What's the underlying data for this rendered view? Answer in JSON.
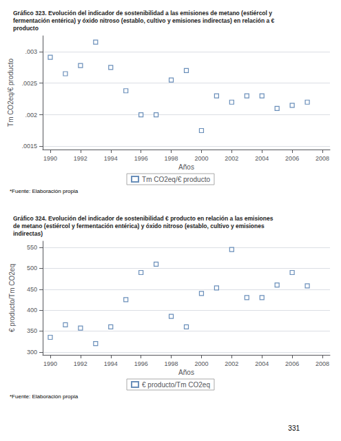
{
  "chart_data": [
    {
      "type": "scatter",
      "title": "Gráfico 323. Evolución del indicador de sostenibilidad a las emisiones de metano (estiércol y\nfermentación entérica) y óxido nitroso (establo, cultivo y emisiones indirectas) en relación a €\nproducto",
      "x": [
        1990,
        1991,
        1992,
        1993,
        1994,
        1995,
        1996,
        1997,
        1998,
        1999,
        2000,
        2001,
        2002,
        2003,
        2004,
        2005,
        2006,
        2007
      ],
      "series": [
        {
          "name": "Tm CO2eq/€ producto",
          "color": "#4472a8",
          "marker": "square",
          "values": [
            0.00291,
            0.00265,
            0.00278,
            0.00315,
            0.00275,
            0.00238,
            0.002,
            0.002,
            0.00255,
            0.0027,
            0.00175,
            0.0023,
            0.0022,
            0.0023,
            0.0023,
            0.0021,
            0.00215,
            0.0022
          ]
        }
      ],
      "xlabel": "Años",
      "ylabel": "Tm CO2eq/€ producto",
      "xlim": [
        1989.5,
        2008.5
      ],
      "ylim": [
        0.00145,
        0.00325
      ],
      "xticks": [
        1990,
        1992,
        1994,
        1996,
        1998,
        2000,
        2002,
        2004,
        2006,
        2008
      ],
      "yticks": [
        {
          "value": 0.0015,
          "label": ".0015"
        },
        {
          "value": 0.002,
          "label": ".002"
        },
        {
          "value": 0.0025,
          "label": ".0025"
        },
        {
          "value": 0.003,
          "label": ".003"
        }
      ],
      "grid": true,
      "legend": "bottom",
      "annotations": [
        "*Fuente: Elaboración propia"
      ]
    },
    {
      "type": "scatter",
      "title": "Gráfico 324. Evolución del indicador de sostenibilidad € producto en relación a las emisiones\nde metano (estiércol y fermentación entérica) y óxido nitroso (establo, cultivo y emisiones\nindirectas)",
      "x": [
        1990,
        1991,
        1992,
        1993,
        1994,
        1995,
        1996,
        1997,
        1998,
        1999,
        2000,
        2001,
        2002,
        2003,
        2004,
        2005,
        2006,
        2007
      ],
      "series": [
        {
          "name": "€ producto/Tm CO2eq",
          "color": "#4472a8",
          "marker": "square",
          "values": [
            335,
            365,
            357,
            320,
            360,
            425,
            490,
            510,
            385,
            360,
            440,
            453,
            545,
            430,
            430,
            460,
            490,
            458
          ]
        }
      ],
      "xlabel": "Años",
      "ylabel": "€ producto/Tm CO2eq",
      "xlim": [
        1989.5,
        2008.5
      ],
      "ylim": [
        293,
        565
      ],
      "xticks": [
        1990,
        1992,
        1994,
        1996,
        1998,
        2000,
        2002,
        2004,
        2006,
        2008
      ],
      "yticks": [
        300,
        350,
        400,
        450,
        500,
        550
      ],
      "grid": true,
      "legend": "bottom",
      "annotations": [
        "*Fuente: Elaboración propia",
        "331"
      ]
    }
  ]
}
